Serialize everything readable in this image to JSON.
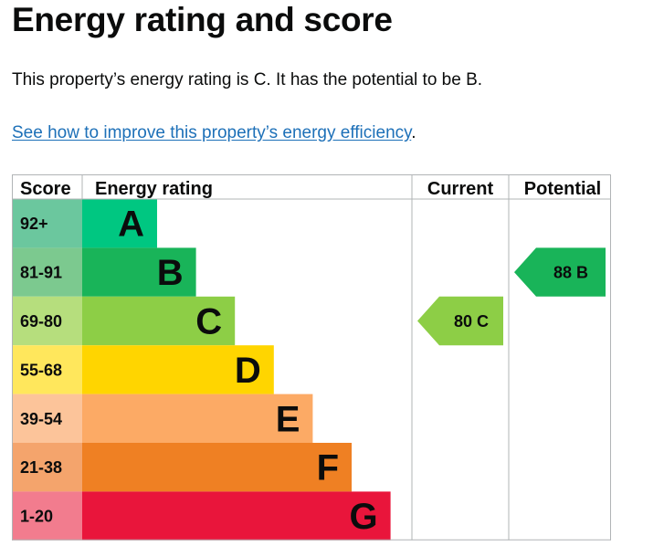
{
  "heading": "Energy rating and score",
  "summary": "This property’s energy rating is C. It has the potential to be B.",
  "improve_link": {
    "text": "See how to improve this property’s energy efficiency",
    "suffix": "."
  },
  "chart_data": {
    "type": "bar",
    "columns": {
      "score": "Score",
      "rating": "Energy rating",
      "current": "Current",
      "potential": "Potential"
    },
    "bands": [
      {
        "letter": "A",
        "score": "92+",
        "score_color": "#6bc79e",
        "bar_color": "#00c781"
      },
      {
        "letter": "B",
        "score": "81-91",
        "score_color": "#7cc98f",
        "bar_color": "#19b459"
      },
      {
        "letter": "C",
        "score": "69-80",
        "score_color": "#b6de7d",
        "bar_color": "#8dce46"
      },
      {
        "letter": "D",
        "score": "55-68",
        "score_color": "#ffe75c",
        "bar_color": "#ffd500"
      },
      {
        "letter": "E",
        "score": "39-54",
        "score_color": "#fcc49a",
        "bar_color": "#fcaa65"
      },
      {
        "letter": "F",
        "score": "21-38",
        "score_color": "#f4a46c",
        "bar_color": "#ef8023"
      },
      {
        "letter": "G",
        "score": "1-20",
        "score_color": "#f27c8e",
        "bar_color": "#e9153b"
      }
    ],
    "current": {
      "score": 80,
      "band": "C",
      "label": "80  C",
      "color": "#8dce46"
    },
    "potential": {
      "score": 88,
      "band": "B",
      "label": "88  B",
      "color": "#19b459"
    }
  }
}
